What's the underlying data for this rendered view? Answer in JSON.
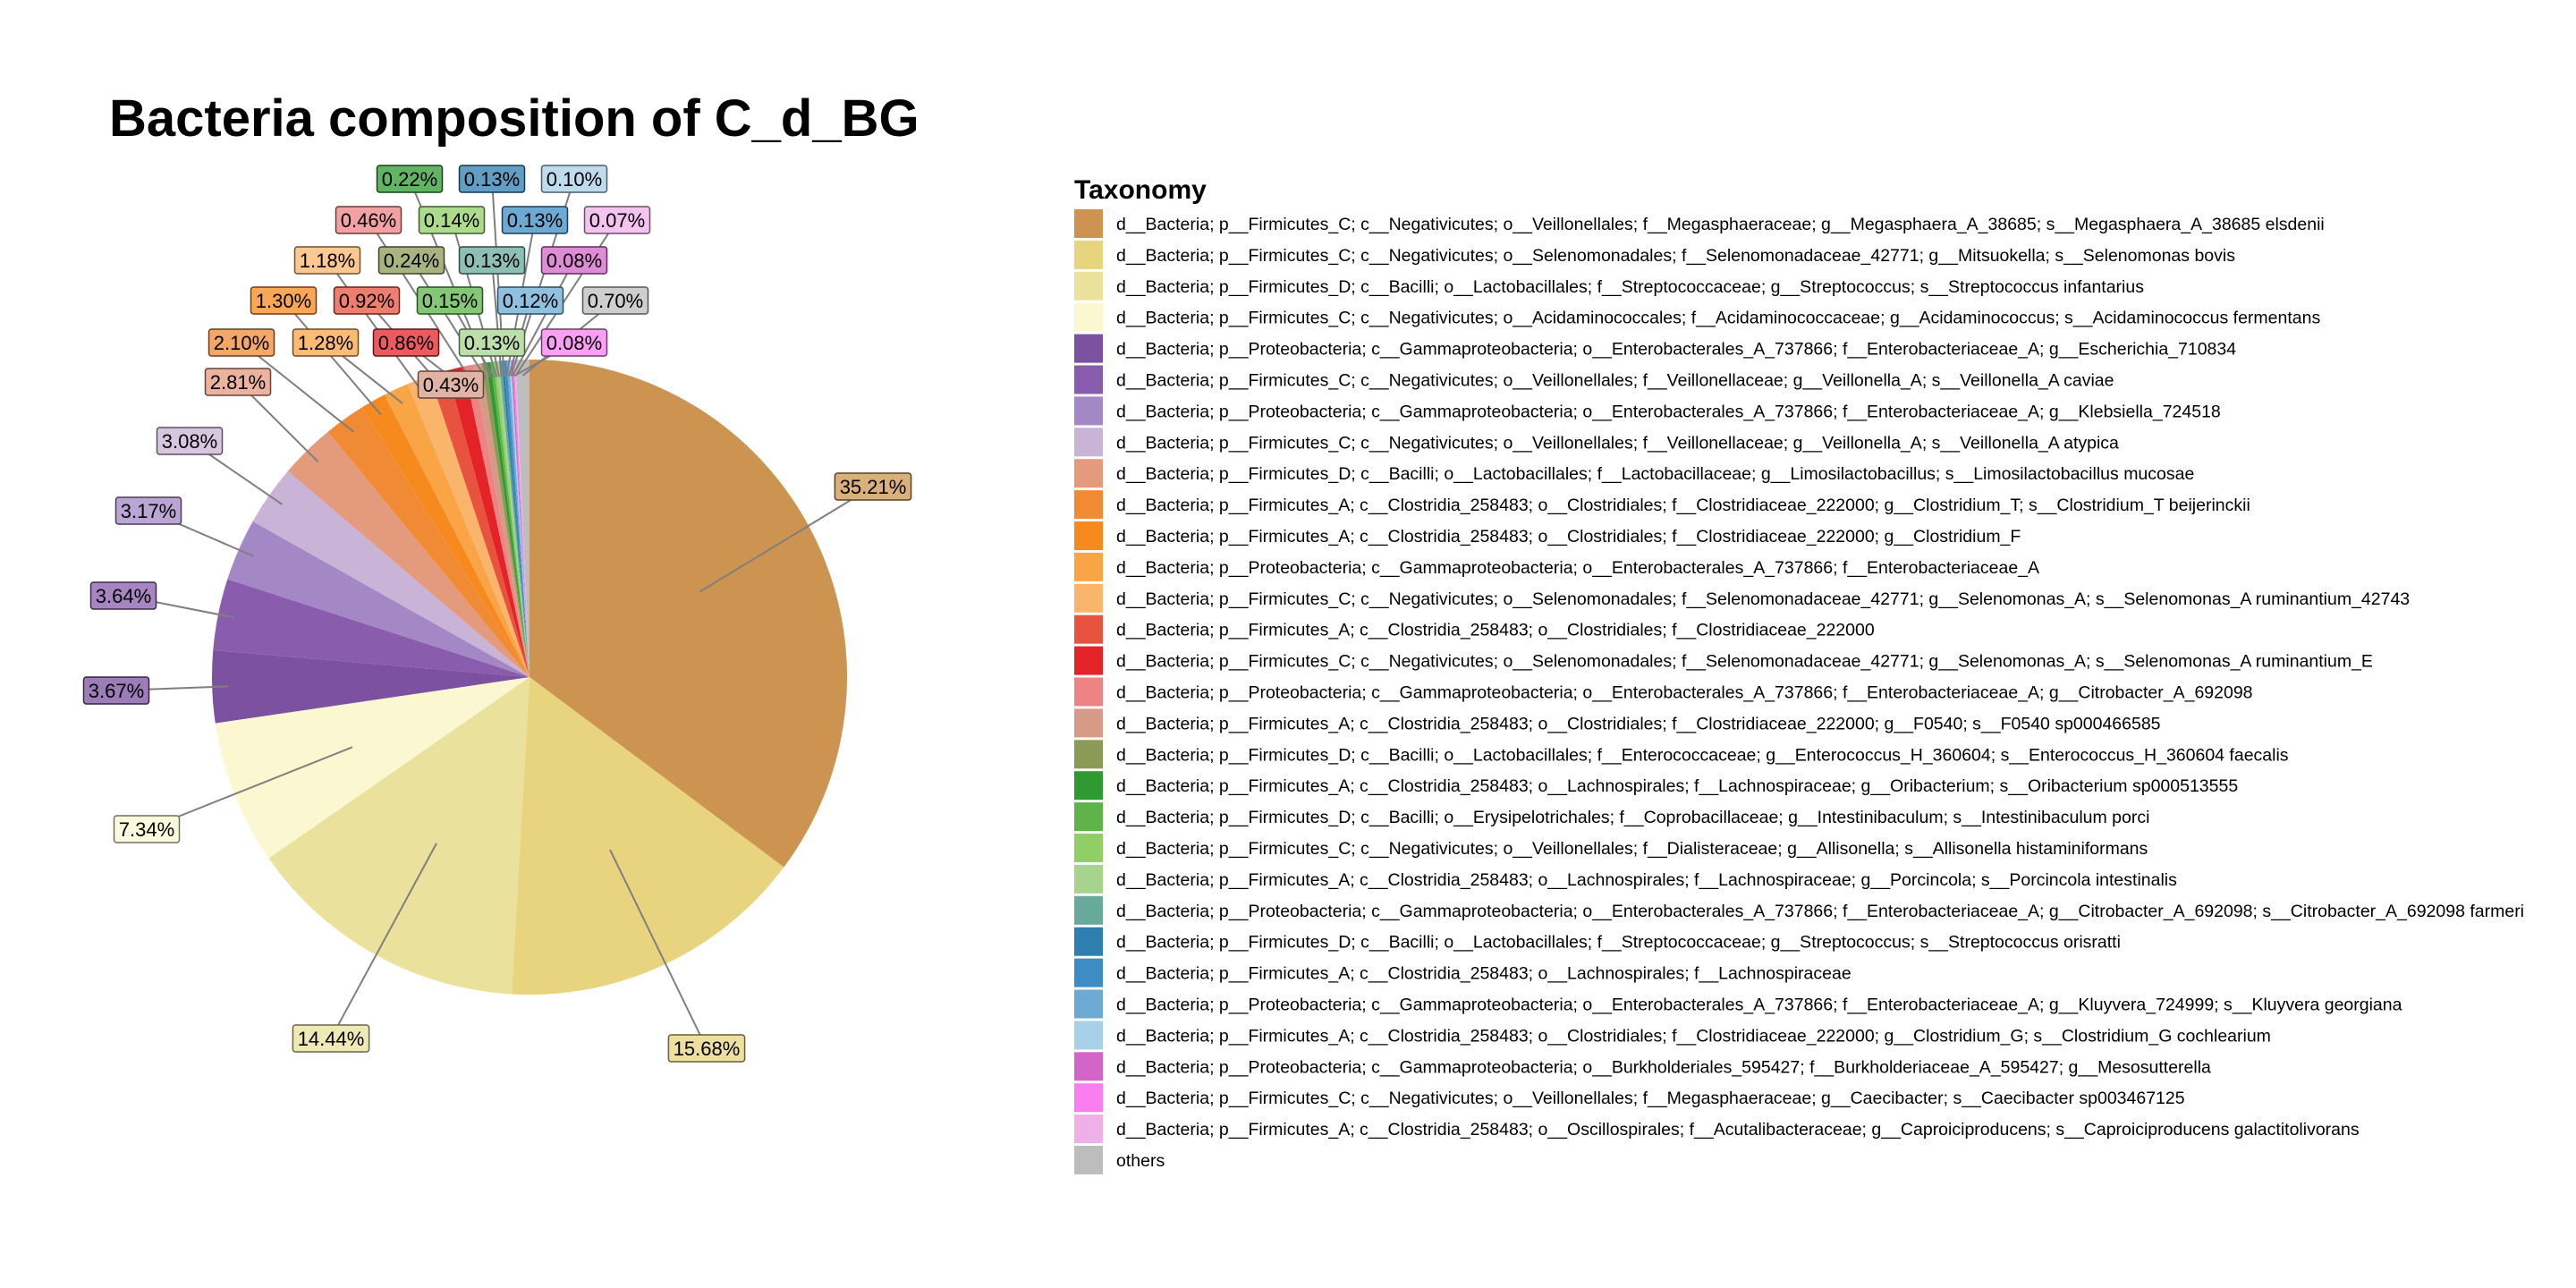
{
  "chart_data": {
    "type": "pie",
    "title": "Bacteria composition of C_d_BG",
    "legend_title": "Taxonomy",
    "legend_position": "right",
    "start": "12 o'clock, clockwise",
    "slices": [
      {
        "name": "d__Bacteria; p__Firmicutes_C; c__Negativicutes; o__Veillonellales; f__Megasphaeraceae; g__Megasphaera_A_38685; s__Megasphaera_A_38685 elsdenii",
        "value": 35.21,
        "label": "35.21%",
        "color": "#CC9450"
      },
      {
        "name": "d__Bacteria; p__Firmicutes_C; c__Negativicutes; o__Selenomonadales; f__Selenomonadaceae_42771; g__Mitsuokella; s__Selenomonas bovis",
        "value": 15.68,
        "label": "15.68%",
        "color": "#E8D47E"
      },
      {
        "name": "d__Bacteria; p__Firmicutes_D; c__Bacilli; o__Lactobacillales; f__Streptococcaceae; g__Streptococcus; s__Streptococcus infantarius",
        "value": 14.44,
        "label": "14.44%",
        "color": "#EAE29C"
      },
      {
        "name": "d__Bacteria; p__Firmicutes_C; c__Negativicutes; o__Acidaminococcales; f__Acidaminococcaceae; g__Acidaminococcus; s__Acidaminococcus fermentans",
        "value": 7.34,
        "label": "7.34%",
        "color": "#FBF8D1"
      },
      {
        "name": "d__Bacteria; p__Proteobacteria; c__Gammaproteobacteria; o__Enterobacterales_A_737866; f__Enterobacteriaceae_A; g__Escherichia_710834",
        "value": 3.67,
        "label": "3.67%",
        "color": "#7B51A0"
      },
      {
        "name": "d__Bacteria; p__Firmicutes_C; c__Negativicutes; o__Veillonellales; f__Veillonellaceae; g__Veillonella_A; s__Veillonella_A caviae",
        "value": 3.64,
        "label": "3.64%",
        "color": "#8A5CAE"
      },
      {
        "name": "d__Bacteria; p__Proteobacteria; c__Gammaproteobacteria; o__Enterobacterales_A_737866; f__Enterobacteriaceae_A; g__Klebsiella_724518",
        "value": 3.17,
        "label": "3.17%",
        "color": "#A487C5"
      },
      {
        "name": "d__Bacteria; p__Firmicutes_C; c__Negativicutes; o__Veillonellales; f__Veillonellaceae; g__Veillonella_A; s__Veillonella_A atypica",
        "value": 3.08,
        "label": "3.08%",
        "color": "#C9B3D6"
      },
      {
        "name": "d__Bacteria; p__Firmicutes_D; c__Bacilli; o__Lactobacillales; f__Lactobacillaceae; g__Limosilactobacillus; s__Limosilactobacillus mucosae",
        "value": 2.81,
        "label": "2.81%",
        "color": "#E49A7C"
      },
      {
        "name": "d__Bacteria; p__Firmicutes_A; c__Clostridia_258483; o__Clostridiales; f__Clostridiaceae_222000; g__Clostridium_T; s__Clostridium_T beijerinckii",
        "value": 2.1,
        "label": "2.10%",
        "color": "#F18A34"
      },
      {
        "name": "d__Bacteria; p__Firmicutes_A; c__Clostridia_258483; o__Clostridiales; f__Clostridiaceae_222000; g__Clostridium_F",
        "value": 1.3,
        "label": "1.30%",
        "color": "#F78A1E"
      },
      {
        "name": "d__Bacteria; p__Proteobacteria; c__Gammaproteobacteria; o__Enterobacterales_A_737866; f__Enterobacteriaceae_A",
        "value": 1.28,
        "label": "1.28%",
        "color": "#F9A445"
      },
      {
        "name": "d__Bacteria; p__Firmicutes_C; c__Negativicutes; o__Selenomonadales; f__Selenomonadaceae_42771; g__Selenomonas_A; s__Selenomonas_A ruminantium_42743",
        "value": 1.18,
        "label": "1.18%",
        "color": "#FAB56C"
      },
      {
        "name": "d__Bacteria; p__Firmicutes_A; c__Clostridia_258483; o__Clostridiales; f__Clostridiaceae_222000",
        "value": 0.92,
        "label": "0.92%",
        "color": "#E8533F"
      },
      {
        "name": "d__Bacteria; p__Firmicutes_C; c__Negativicutes; o__Selenomonadales; f__Selenomonadaceae_42771; g__Selenomonas_A; s__Selenomonas_A ruminantium_E",
        "value": 0.86,
        "label": "0.86%",
        "color": "#E32328"
      },
      {
        "name": "d__Bacteria; p__Proteobacteria; c__Gammaproteobacteria; o__Enterobacterales_A_737866; f__Enterobacteriaceae_A; g__Citrobacter_A_692098",
        "value": 0.46,
        "label": "0.46%",
        "color": "#EE8383"
      },
      {
        "name": "d__Bacteria; p__Firmicutes_A; c__Clostridia_258483; o__Clostridiales; f__Clostridiaceae_222000; g__F0540; s__F0540 sp000466585",
        "value": 0.43,
        "label": "0.43%",
        "color": "#D69A86"
      },
      {
        "name": "d__Bacteria; p__Firmicutes_D; c__Bacilli; o__Lactobacillales; f__Enterococcaceae; g__Enterococcus_H_360604; s__Enterococcus_H_360604 faecalis",
        "value": 0.24,
        "label": "0.24%",
        "color": "#8B9A56"
      },
      {
        "name": "d__Bacteria; p__Firmicutes_A; c__Clostridia_258483; o__Lachnospirales; f__Lachnospiraceae; g__Oribacterium; s__Oribacterium sp000513555",
        "value": 0.22,
        "label": "0.22%",
        "color": "#2F9A32"
      },
      {
        "name": "d__Bacteria; p__Firmicutes_D; c__Bacilli; o__Erysipelotrichales; f__Coprobacillaceae; g__Intestinibaculum; s__Intestinibaculum porci",
        "value": 0.15,
        "label": "0.15%",
        "color": "#5EB44A"
      },
      {
        "name": "d__Bacteria; p__Firmicutes_C; c__Negativicutes; o__Veillonellales; f__Dialisteraceae; g__Allisonella; s__Allisonella histaminiformans",
        "value": 0.14,
        "label": "0.14%",
        "color": "#91CF66"
      },
      {
        "name": "d__Bacteria; p__Firmicutes_A; c__Clostridia_258483; o__Lachnospirales; f__Lachnospiraceae; g__Porcincola; s__Porcincola intestinalis",
        "value": 0.13,
        "label": "0.13%",
        "color": "#A6D38D"
      },
      {
        "name": "d__Bacteria; p__Proteobacteria; c__Gammaproteobacteria; o__Enterobacterales_A_737866; f__Enterobacteriaceae_A; g__Citrobacter_A_692098; s__Citrobacter_A_692098 farmeri",
        "value": 0.13,
        "label": "0.13%",
        "color": "#67A99A"
      },
      {
        "name": "d__Bacteria; p__Firmicutes_D; c__Bacilli; o__Lactobacillales; f__Streptococcaceae; g__Streptococcus; s__Streptococcus orisratti",
        "value": 0.13,
        "label": "0.13%",
        "color": "#2E7EAF"
      },
      {
        "name": "d__Bacteria; p__Firmicutes_A; c__Clostridia_258483; o__Lachnospirales; f__Lachnospiraceae",
        "value": 0.13,
        "label": "0.13%",
        "color": "#3D8CC3"
      },
      {
        "name": "d__Bacteria; p__Proteobacteria; c__Gammaproteobacteria; o__Enterobacterales_A_737866; f__Enterobacteriaceae_A; g__Kluyvera_724999; s__Kluyvera georgiana",
        "value": 0.12,
        "label": "0.12%",
        "color": "#6CAAD3"
      },
      {
        "name": "d__Bacteria; p__Firmicutes_A; c__Clostridia_258483; o__Clostridiales; f__Clostridiaceae_222000; g__Clostridium_G; s__Clostridium_G cochlearium",
        "value": 0.1,
        "label": "0.10%",
        "color": "#A8D0E8"
      },
      {
        "name": "d__Bacteria; p__Proteobacteria; c__Gammaproteobacteria; o__Burkholderiales_595427; f__Burkholderiaceae_A_595427; g__Mesosutterella",
        "value": 0.08,
        "label": "0.08%",
        "color": "#D465C8"
      },
      {
        "name": "d__Bacteria; p__Firmicutes_C; c__Negativicutes; o__Veillonellales; f__Megasphaeraceae; g__Caecibacter; s__Caecibacter sp003467125",
        "value": 0.08,
        "label": "0.08%",
        "color": "#F97EF0"
      },
      {
        "name": "d__Bacteria; p__Firmicutes_A; c__Clostridia_258483; o__Oscillospirales; f__Acutalibacteraceae; g__Caproiciproducens; s__Caproiciproducens galactitolivorans",
        "value": 0.07,
        "label": "0.07%",
        "color": "#EFB0EA"
      },
      {
        "name": "others",
        "value": 0.7,
        "label": "0.70%",
        "color": "#BDBDBD"
      }
    ]
  }
}
